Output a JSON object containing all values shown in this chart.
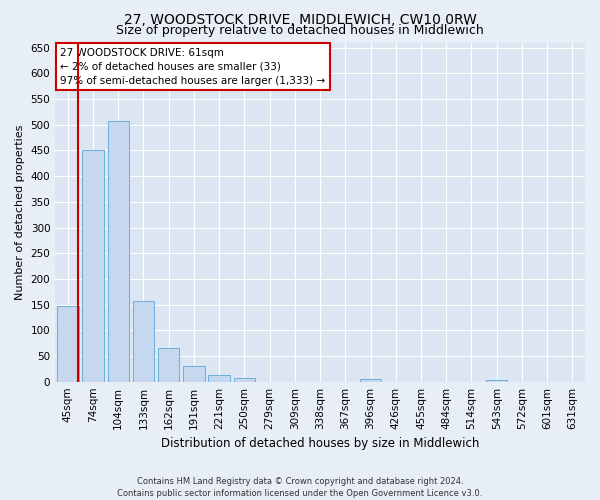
{
  "title": "27, WOODSTOCK DRIVE, MIDDLEWICH, CW10 0RW",
  "subtitle": "Size of property relative to detached houses in Middlewich",
  "xlabel": "Distribution of detached houses by size in Middlewich",
  "ylabel": "Number of detached properties",
  "footer_line1": "Contains HM Land Registry data © Crown copyright and database right 2024.",
  "footer_line2": "Contains public sector information licensed under the Open Government Licence v3.0.",
  "categories": [
    "45sqm",
    "74sqm",
    "104sqm",
    "133sqm",
    "162sqm",
    "191sqm",
    "221sqm",
    "250sqm",
    "279sqm",
    "309sqm",
    "338sqm",
    "367sqm",
    "396sqm",
    "426sqm",
    "455sqm",
    "484sqm",
    "514sqm",
    "543sqm",
    "572sqm",
    "601sqm",
    "631sqm"
  ],
  "values": [
    148,
    450,
    507,
    157,
    66,
    30,
    13,
    7,
    0,
    0,
    0,
    0,
    5,
    0,
    0,
    0,
    0,
    3,
    0,
    0,
    0
  ],
  "bar_color": "#c5d8ef",
  "bar_edge_color": "#6aaed6",
  "red_line_x": 0.41,
  "red_line_color": "#cc0000",
  "annotation_text": "27 WOODSTOCK DRIVE: 61sqm\n← 2% of detached houses are smaller (33)\n97% of semi-detached houses are larger (1,333) →",
  "annotation_box_color": "#ffffff",
  "annotation_box_edge_color": "#cc0000",
  "ylim": [
    0,
    660
  ],
  "yticks": [
    0,
    50,
    100,
    150,
    200,
    250,
    300,
    350,
    400,
    450,
    500,
    550,
    600,
    650
  ],
  "background_color": "#e8eef6",
  "plot_bg_color": "#dce6f2",
  "grid_color": "#ffffff",
  "title_fontsize": 10,
  "subtitle_fontsize": 9,
  "ylabel_fontsize": 8,
  "xlabel_fontsize": 8.5,
  "tick_fontsize": 7.5,
  "annotation_fontsize": 7.5,
  "footer_fontsize": 6
}
